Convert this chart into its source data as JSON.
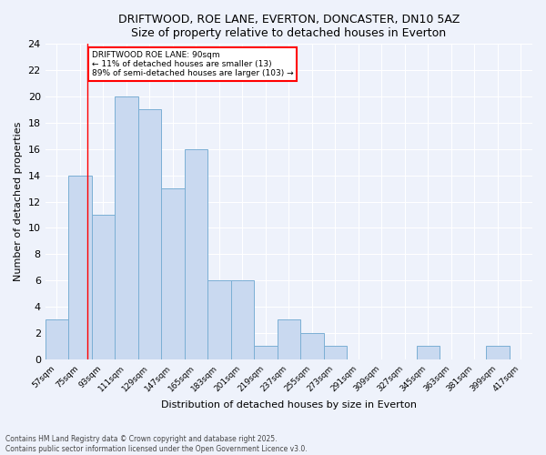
{
  "title1": "DRIFTWOOD, ROE LANE, EVERTON, DONCASTER, DN10 5AZ",
  "title2": "Size of property relative to detached houses in Everton",
  "xlabel": "Distribution of detached houses by size in Everton",
  "ylabel": "Number of detached properties",
  "bins": [
    57,
    75,
    93,
    111,
    129,
    147,
    165,
    183,
    201,
    219,
    237,
    255,
    273,
    291,
    309,
    327,
    345,
    363,
    381,
    399,
    417
  ],
  "counts": [
    3,
    14,
    11,
    20,
    19,
    13,
    16,
    6,
    6,
    1,
    3,
    2,
    1,
    0,
    0,
    0,
    1,
    0,
    0,
    1,
    0
  ],
  "bar_color": "#c9d9f0",
  "bar_edge_color": "#7bafd4",
  "red_line_x": 90,
  "annotation_text": "DRIFTWOOD ROE LANE: 90sqm\n← 11% of detached houses are smaller (13)\n89% of semi-detached houses are larger (103) →",
  "annotation_box_color": "white",
  "annotation_box_edge_color": "red",
  "ylim": [
    0,
    24
  ],
  "yticks": [
    0,
    2,
    4,
    6,
    8,
    10,
    12,
    14,
    16,
    18,
    20,
    22,
    24
  ],
  "footer_text": "Contains HM Land Registry data © Crown copyright and database right 2025.\nContains public sector information licensed under the Open Government Licence v3.0.",
  "bg_color": "#eef2fb",
  "grid_color": "#ffffff"
}
